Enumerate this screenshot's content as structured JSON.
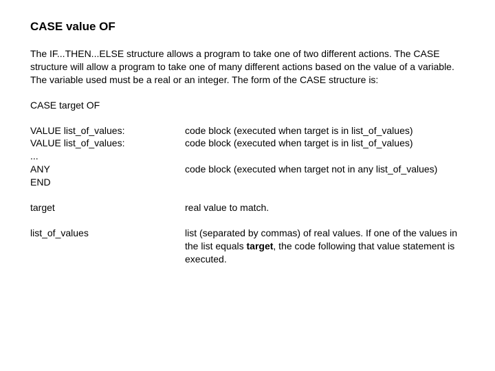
{
  "title": "CASE value OF",
  "intro": "The IF...THEN...ELSE structure allows a program to take one of two different actions. The CASE structure will allow a program to take one of many different actions based on the value of a variable. The variable used must be a real or an integer. The form of the CASE structure is:",
  "case_target": "CASE target OF",
  "syntax": {
    "left1": "VALUE list_of_values:",
    "right1": "code block (executed when target is in list_of_values)",
    "left2": "VALUE list_of_values:",
    "right2": "code block (executed when target is in list_of_values)",
    "left3a": "...",
    "left3b": "ANY",
    "right3": "code block (executed when target not in any list_of_values)",
    "left3c": "END"
  },
  "params": {
    "p1_l": "target",
    "p1_r": "real value to match.",
    "p2_l": "list_of_values",
    "p2_r_before": "list (separated by commas) of real values. If one of the values in the list equals ",
    "p2_r_bold": "target",
    "p2_r_after": ", the code following that value statement is executed."
  }
}
